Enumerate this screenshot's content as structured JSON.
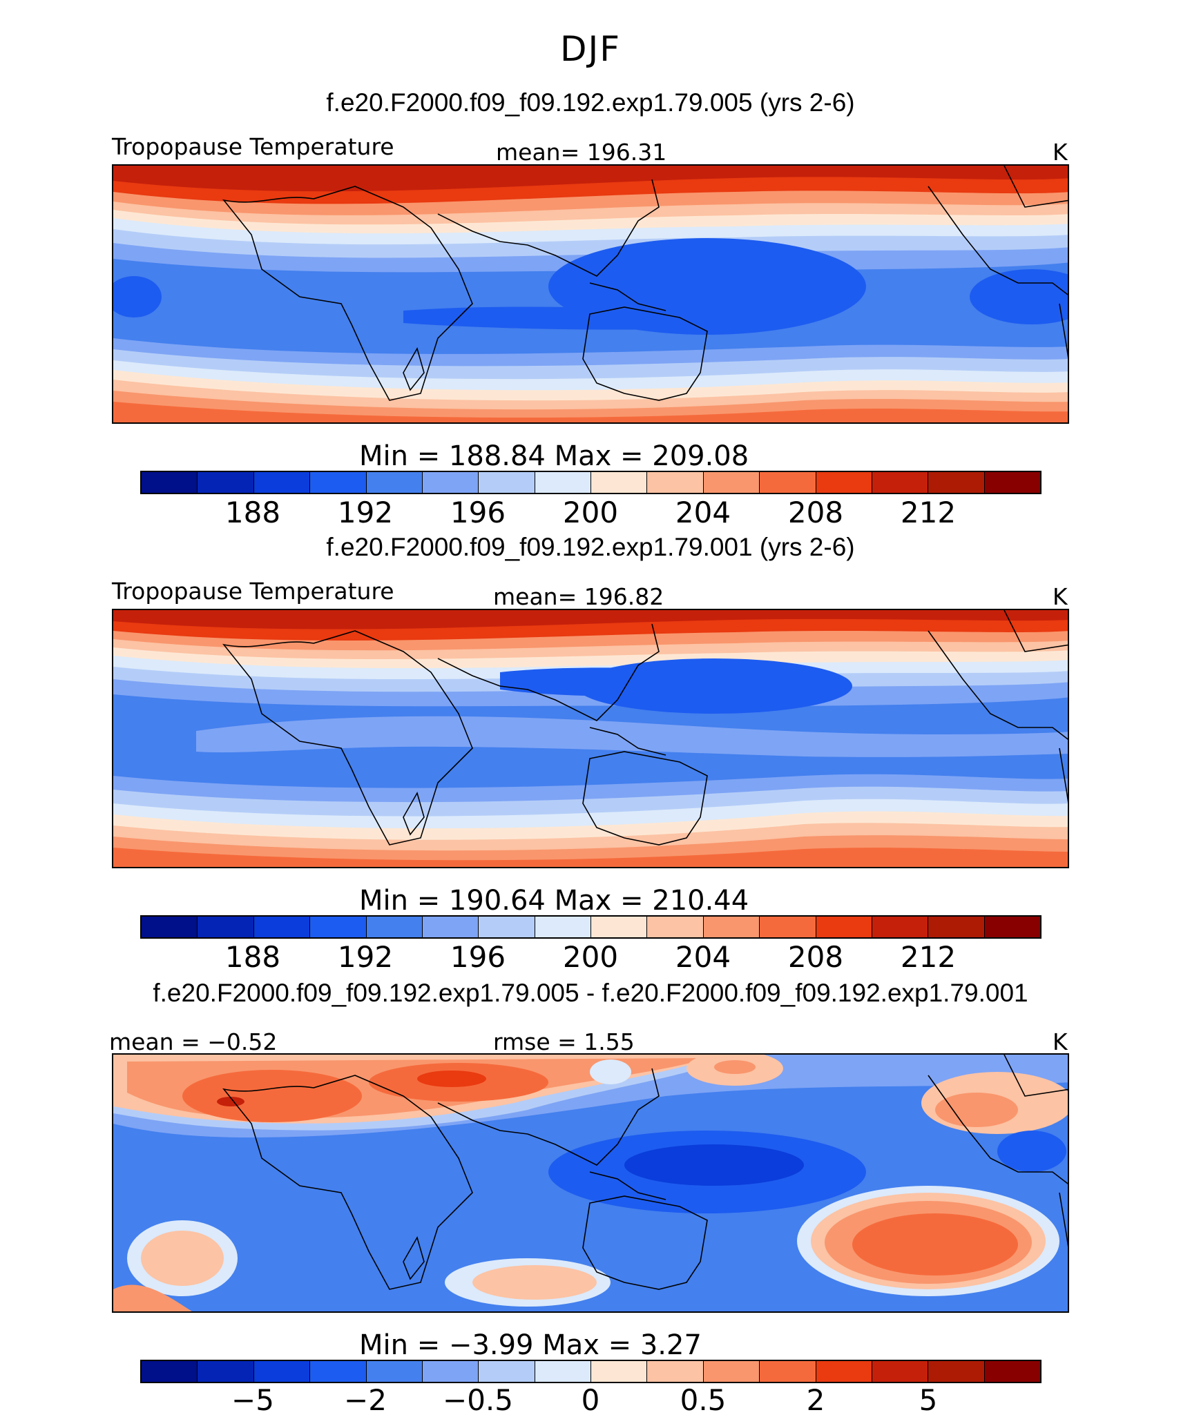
{
  "title": "DJF",
  "palette": [
    "#000f8a",
    "#0324b5",
    "#0a3ddb",
    "#1d5cf0",
    "#4480ee",
    "#7ea4f5",
    "#b4cdf8",
    "#dceafb",
    "#fde7d4",
    "#fcc3a4",
    "#f9966d",
    "#f56a3c",
    "#e93a10",
    "#c5200a",
    "#ad1b05",
    "#890000"
  ],
  "panels": [
    {
      "id": "top",
      "run_title": "f.e20.F2000.f09_f09.192.exp1.79.005 (yrs 2-6)",
      "top_left": "Tropopause Temperature",
      "top_center": "mean=  196.31",
      "top_right": "K",
      "minmax": "Min  =  188.84  Max  =  209.08",
      "ticks": [
        "188",
        "192",
        "196",
        "200",
        "204",
        "208",
        "212"
      ]
    },
    {
      "id": "middle",
      "run_title": "f.e20.F2000.f09_f09.192.exp1.79.001 (yrs 2-6)",
      "top_left": "Tropopause Temperature",
      "top_center": "mean=  196.82",
      "top_right": "K",
      "minmax": "Min  =  190.64  Max  =  210.44",
      "ticks": [
        "188",
        "192",
        "196",
        "200",
        "204",
        "208",
        "212"
      ]
    },
    {
      "id": "diff",
      "run_title": "f.e20.F2000.f09_f09.192.exp1.79.005 - f.e20.F2000.f09_f09.192.exp1.79.001",
      "top_left": "mean =   −0.52",
      "top_center": "rmse =     1.55",
      "top_right": "K",
      "minmax": "Min  =    −3.99  Max  =      3.27",
      "ticks": [
        "−5",
        "−2",
        "−0.5",
        "0",
        "0.5",
        "2",
        "5"
      ]
    }
  ]
}
